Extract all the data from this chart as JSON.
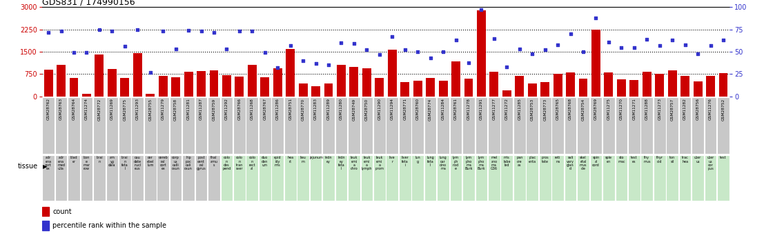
{
  "title": "GDS831 / 174990156",
  "samples": [
    "GSM28762",
    "GSM28763",
    "GSM28764",
    "GSM11274",
    "GSM28772",
    "GSM11269",
    "GSM28775",
    "GSM11293",
    "GSM28755",
    "GSM11279",
    "GSM28758",
    "GSM11281",
    "GSM11287",
    "GSM28759",
    "GSM11292",
    "GSM28766",
    "GSM11268",
    "GSM28767",
    "GSM11286",
    "GSM28751",
    "GSM28770",
    "GSM11283",
    "GSM11289",
    "GSM11280",
    "GSM28749",
    "GSM28750",
    "GSM11290",
    "GSM11294",
    "GSM28771",
    "GSM28760",
    "GSM28774",
    "GSM11284",
    "GSM28761",
    "GSM11278",
    "GSM11291",
    "GSM11277",
    "GSM11272",
    "GSM11285",
    "GSM28753",
    "GSM28773",
    "GSM28765",
    "GSM28768",
    "GSM28754",
    "GSM28769",
    "GSM11275",
    "GSM11270",
    "GSM11271",
    "GSM11288",
    "GSM11273",
    "GSM28757",
    "GSM11282",
    "GSM28756",
    "GSM11276",
    "GSM28752"
  ],
  "counts": [
    900,
    1050,
    610,
    75,
    1400,
    930,
    620,
    1450,
    90,
    700,
    640,
    830,
    850,
    870,
    720,
    660,
    1050,
    640,
    950,
    1600,
    430,
    350,
    430,
    1050,
    1000,
    950,
    620,
    1580,
    480,
    530,
    610,
    530,
    1170,
    600,
    2900,
    840,
    200,
    700,
    430,
    480,
    750,
    800,
    590,
    2250,
    800,
    580,
    560,
    820,
    770,
    870,
    680,
    500,
    680,
    780
  ],
  "percentiles": [
    72,
    73,
    49,
    49,
    75,
    73,
    56,
    75,
    27,
    73,
    53,
    74,
    73,
    72,
    53,
    73,
    73,
    49,
    32,
    57,
    40,
    37,
    35,
    60,
    59,
    52,
    47,
    67,
    52,
    50,
    43,
    50,
    63,
    38,
    97,
    65,
    33,
    53,
    48,
    52,
    58,
    70,
    50,
    88,
    61,
    55,
    55,
    64,
    57,
    63,
    58,
    48,
    57,
    63
  ],
  "tissue_names": [
    "adr\nena\ncort\nex",
    "adr\nena\nmed\nulla",
    "blad\ner",
    "bon\ne\nmar\nrow",
    "brai\nn",
    "am\nyg\ndala",
    "brai\nn\nfeta\nl",
    "cau\ndate\nnucl\neus",
    "cer\nebel\nlum",
    "cereb\nral\ncort\nex",
    "corp\nus\ncalli\nosun",
    "hip\npoc\ncali\nosun",
    "post\ncent\nral\ngyrus",
    "thal\namu\ns",
    "colo\nn\ndes\npend",
    "colo\nn\ntran\nsver",
    "colo\nn\nrect\nal",
    "duo\nden\num",
    "epid\nidy\nmis",
    "hea\nrt",
    "lieu\nm",
    "jejunum",
    "kidn\ney",
    "kidn\ney\nfeta\nl",
    "leuk\nemi\na\nchro",
    "leuk\nemi\na\nlymph",
    "leuk\nemi\na\nprom",
    "live\nr",
    "liver\nfeta\ni",
    "lun\ng",
    "lung\nfeta\nl",
    "lung\ncar\ncino\nma",
    "lym\nph\nnod\ne",
    "lym\npho\nma\nBurk",
    "lym\npho\nma\nBurk",
    "mel\nano\nma\nG36",
    "mis\nlabe\nled",
    "pan\ncre\nas",
    "plac\nenta",
    "pros\ntate",
    "reti\nna",
    "sali\nvary\nglan\nd",
    "skel\netal\nmus\ncle",
    "spin\nal\ncord",
    "sple\nen",
    "sto\nmac",
    "test\nes",
    "thy\nmus",
    "thyr\noid",
    "ton\nsil",
    "trac\nhea",
    "uter\nus",
    "uter\nus\ncor\npus",
    "test"
  ],
  "tissue_gray": [
    1,
    1,
    1,
    1,
    1,
    1,
    1,
    1,
    1,
    1,
    1,
    1,
    1,
    1,
    0,
    0,
    0,
    0,
    0,
    0,
    0,
    0,
    0,
    0,
    0,
    0,
    0,
    0,
    0,
    0,
    0,
    0,
    0,
    0,
    0,
    0,
    0,
    0,
    0,
    0,
    0,
    0,
    0,
    0,
    0,
    0,
    0,
    0,
    0,
    0,
    0,
    0,
    0,
    0
  ],
  "bar_color": "#cc0000",
  "dot_color": "#3333cc",
  "ylim_left": [
    0,
    3000
  ],
  "ylim_right": [
    0,
    100
  ],
  "yticks_left": [
    0,
    750,
    1500,
    2250,
    3000
  ],
  "yticks_right": [
    0,
    25,
    50,
    75,
    100
  ],
  "hlines": [
    750,
    1500,
    2250
  ],
  "gray_color": "#c8c8c8",
  "green_color": "#c8e8c8",
  "figsize": [
    11.07,
    3.45
  ],
  "dpi": 100
}
